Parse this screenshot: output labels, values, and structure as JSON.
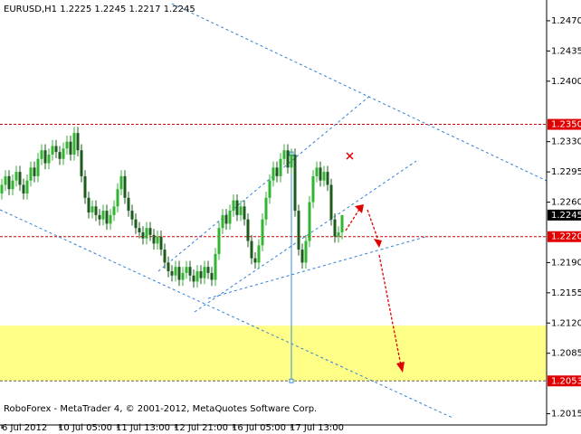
{
  "chart_data": {
    "type": "candlestick",
    "title": "EURUSD,H1  1.2225 1.2245 1.2217 1.2245",
    "footer": "RoboForex - MetaTrader 4, © 2001-2012, MetaQuotes Software Corp.",
    "up_color": "#32b432",
    "down_color": "#1e5a1e",
    "open": [
      1.227,
      1.228,
      1.229,
      1.2275,
      1.2285,
      1.2295,
      1.228,
      1.227,
      1.2285,
      1.23,
      1.229,
      1.231,
      1.232,
      1.2305,
      1.2315,
      1.2325,
      1.2318,
      1.231,
      1.2322,
      1.233,
      1.2315,
      1.234,
      1.232,
      1.229,
      1.2265,
      1.2248,
      1.2255,
      1.2245,
      1.224,
      1.225,
      1.2235,
      1.2245,
      1.2255,
      1.2275,
      1.229,
      1.2265,
      1.225,
      1.224,
      1.223,
      1.2225,
      1.2218,
      1.223,
      1.2222,
      1.2212,
      1.222,
      1.2205,
      1.219,
      1.218,
      1.2175,
      1.2185,
      1.217,
      1.2178,
      1.2185,
      1.2175,
      1.2168,
      1.218,
      1.2172,
      1.2185,
      1.2178,
      1.217,
      1.22,
      1.223,
      1.2245,
      1.2235,
      1.225,
      1.2262,
      1.2245,
      1.2255,
      1.224,
      1.2215,
      1.2195,
      1.219,
      1.221,
      1.224,
      1.2265,
      1.2285,
      1.23,
      1.229,
      1.231,
      1.232,
      1.23,
      1.2315,
      1.225,
      1.2205,
      1.219,
      1.2215,
      1.226,
      1.229,
      1.23,
      1.2285,
      1.2295,
      1.228,
      1.224,
      1.222,
      1.2225
    ],
    "high": [
      1.2287,
      1.2297,
      1.2297,
      1.2292,
      1.2302,
      1.2302,
      1.2287,
      1.2292,
      1.2307,
      1.2307,
      1.2317,
      1.2327,
      1.2327,
      1.2322,
      1.2332,
      1.2332,
      1.2325,
      1.2329,
      1.2337,
      1.2337,
      1.2347,
      1.2347,
      1.2327,
      1.2297,
      1.2272,
      1.2262,
      1.2262,
      1.2252,
      1.2257,
      1.2257,
      1.2252,
      1.2262,
      1.2282,
      1.2297,
      1.2297,
      1.2272,
      1.2257,
      1.2247,
      1.2237,
      1.2232,
      1.2237,
      1.2237,
      1.2229,
      1.2227,
      1.2227,
      1.2212,
      1.2197,
      1.2187,
      1.2192,
      1.2192,
      1.2185,
      1.2192,
      1.2192,
      1.2182,
      1.2187,
      1.2187,
      1.2192,
      1.2192,
      1.2185,
      1.2207,
      1.2237,
      1.2252,
      1.2252,
      1.2257,
      1.2269,
      1.2269,
      1.2262,
      1.2262,
      1.2247,
      1.2222,
      1.2202,
      1.2217,
      1.2247,
      1.2272,
      1.2292,
      1.2307,
      1.2307,
      1.2317,
      1.2327,
      1.2327,
      1.2322,
      1.2322,
      1.2257,
      1.2212,
      1.2222,
      1.2267,
      1.2297,
      1.2307,
      1.2307,
      1.2302,
      1.2302,
      1.2287,
      1.2247,
      1.2232,
      1.2245
    ],
    "low": [
      1.2263,
      1.2273,
      1.2268,
      1.2268,
      1.2278,
      1.2273,
      1.2263,
      1.2263,
      1.2278,
      1.2283,
      1.2283,
      1.2303,
      1.2298,
      1.2298,
      1.2308,
      1.2311,
      1.2303,
      1.2303,
      1.2315,
      1.2308,
      1.2308,
      1.2313,
      1.2283,
      1.2258,
      1.2241,
      1.2241,
      1.2238,
      1.2233,
      1.2233,
      1.2228,
      1.2228,
      1.2238,
      1.2248,
      1.2268,
      1.2258,
      1.2243,
      1.2233,
      1.2223,
      1.2218,
      1.2211,
      1.2211,
      1.2215,
      1.2205,
      1.2205,
      1.2198,
      1.2183,
      1.2173,
      1.2168,
      1.2168,
      1.2163,
      1.2163,
      1.2171,
      1.2168,
      1.2161,
      1.2161,
      1.2165,
      1.2165,
      1.2171,
      1.2163,
      1.2163,
      1.2193,
      1.2223,
      1.2228,
      1.2228,
      1.2243,
      1.2238,
      1.2238,
      1.2233,
      1.2208,
      1.2188,
      1.2183,
      1.2183,
      1.2203,
      1.2233,
      1.2258,
      1.2278,
      1.2283,
      1.2283,
      1.2303,
      1.2293,
      1.2293,
      1.2243,
      1.2198,
      1.2183,
      1.2183,
      1.2208,
      1.2253,
      1.2283,
      1.2278,
      1.2278,
      1.2273,
      1.2233,
      1.2213,
      1.2213,
      1.2217
    ],
    "close": [
      1.228,
      1.229,
      1.2275,
      1.2285,
      1.2295,
      1.228,
      1.227,
      1.2285,
      1.23,
      1.229,
      1.231,
      1.232,
      1.2305,
      1.2315,
      1.2325,
      1.2318,
      1.231,
      1.2322,
      1.233,
      1.2315,
      1.234,
      1.232,
      1.229,
      1.2265,
      1.2248,
      1.2255,
      1.2245,
      1.224,
      1.225,
      1.2235,
      1.2245,
      1.2255,
      1.2275,
      1.229,
      1.2265,
      1.225,
      1.224,
      1.223,
      1.2225,
      1.2218,
      1.223,
      1.2222,
      1.2212,
      1.222,
      1.2205,
      1.219,
      1.218,
      1.2175,
      1.2185,
      1.217,
      1.2178,
      1.2185,
      1.2175,
      1.2168,
      1.218,
      1.2172,
      1.2185,
      1.2178,
      1.217,
      1.22,
      1.223,
      1.2245,
      1.2235,
      1.225,
      1.2262,
      1.2245,
      1.2255,
      1.224,
      1.2215,
      1.2195,
      1.219,
      1.221,
      1.224,
      1.2265,
      1.2285,
      1.23,
      1.229,
      1.231,
      1.232,
      1.23,
      1.2315,
      1.225,
      1.2205,
      1.219,
      1.2215,
      1.226,
      1.229,
      1.23,
      1.2285,
      1.2295,
      1.228,
      1.224,
      1.222,
      1.2225,
      1.2245
    ],
    "xlim": [
      0,
      151
    ],
    "xticks": [
      {
        "value": 0,
        "label": "6 Jul 2012"
      },
      {
        "value": 16,
        "label": "10 Jul 05:00"
      },
      {
        "value": 32,
        "label": "11 Jul 13:00"
      },
      {
        "value": 48,
        "label": "12 Jul 21:00"
      },
      {
        "value": 64,
        "label": "16 Jul 05:00"
      },
      {
        "value": 80,
        "label": "17 Jul 13:00"
      }
    ],
    "ylim": [
      1.2002,
      1.2494
    ],
    "yticks": [
      {
        "value": 1.247,
        "label": "1.2470"
      },
      1.2435,
      {
        "value": 1.24,
        "label": "1.2400"
      },
      {
        "value": 1.233,
        "label": "1.2330"
      },
      1.2295,
      {
        "value": 1.226,
        "label": "1.2260"
      },
      {
        "value": 1.219,
        "label": "1.2190"
      },
      1.2155,
      {
        "value": 1.212,
        "label": "1.2120"
      },
      1.2085,
      1.2015
    ],
    "levels": [
      {
        "value": 1.235,
        "label": "1.2350",
        "color": "#e00000",
        "line_color": "#d00000"
      },
      {
        "value": 1.2245,
        "label": "1.2245",
        "color": "#000000"
      },
      {
        "value": 1.222,
        "label": "1.2220",
        "color": "#e00000",
        "line_color": "#d00000"
      },
      {
        "value": 1.2053,
        "label": "1.2053",
        "color": "#e00000",
        "line_color": "#606060"
      }
    ],
    "zone": {
      "from": 1.2053,
      "to": 1.2117,
      "color": "#ffff88"
    },
    "marker_line": {
      "x": 80,
      "from": 1.2053,
      "to": 1.2316,
      "color": "#3a8fd8"
    }
  }
}
